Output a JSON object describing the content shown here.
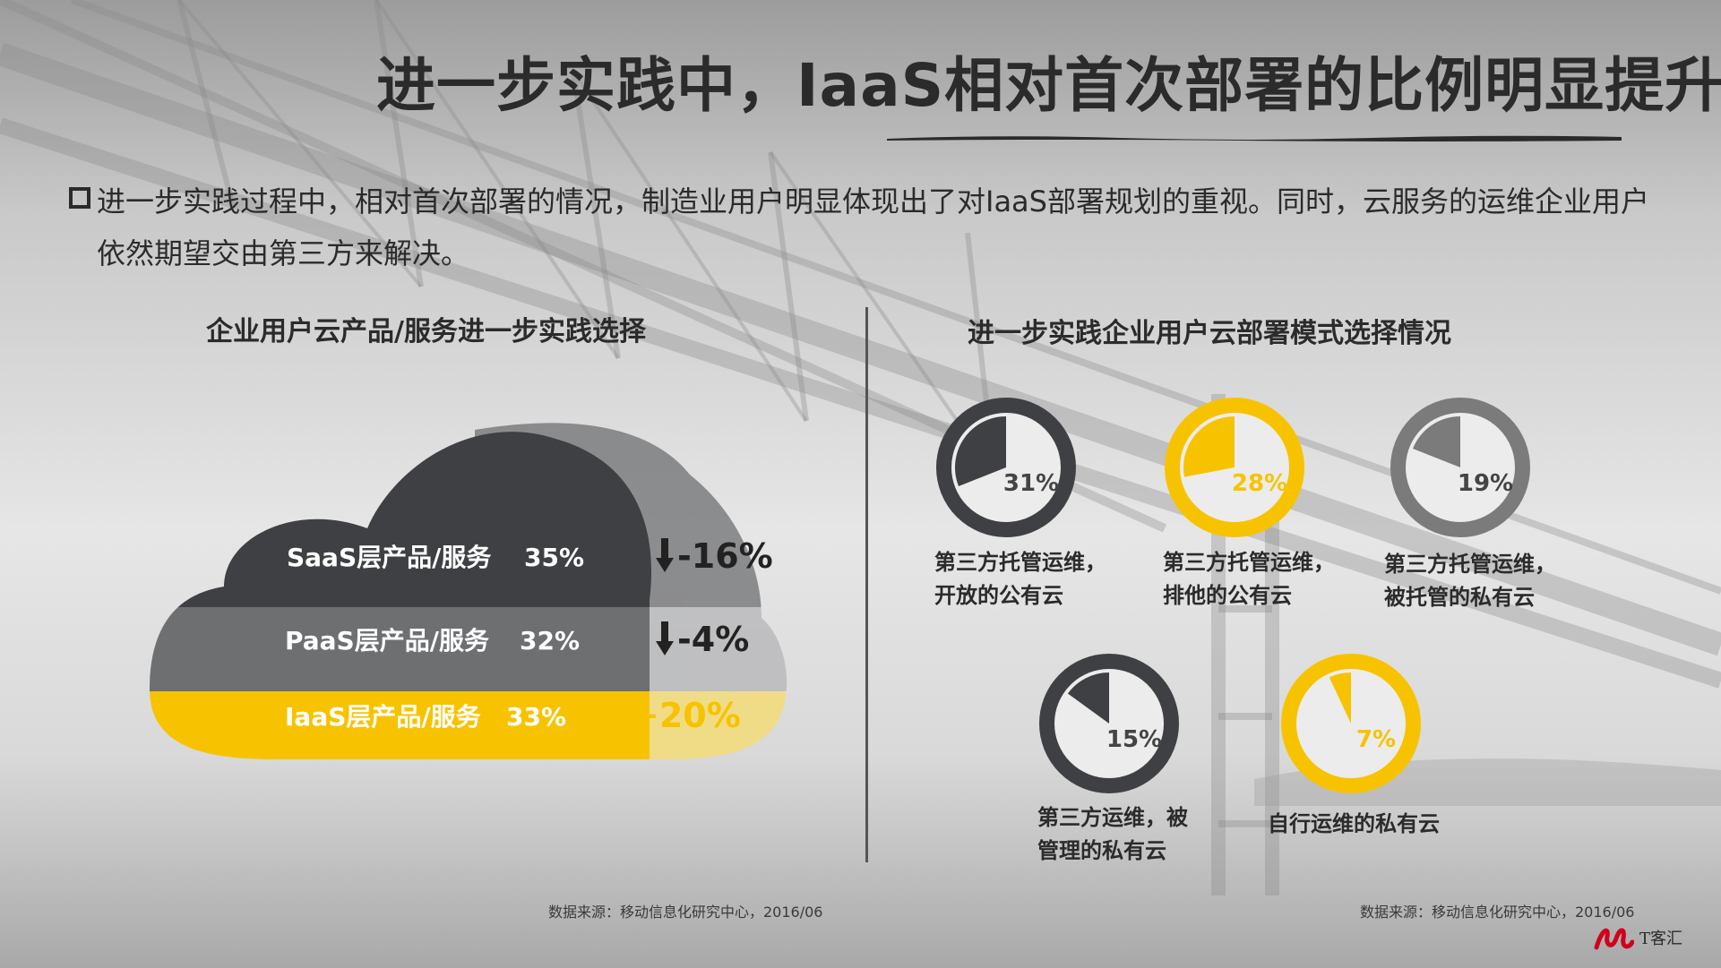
{
  "title": "进一步实践中，IaaS相对首次部署的比例明显提升",
  "intro": "进一步实践过程中，相对首次部署的情况，制造业用户明显体现出了对IaaS部署规划的重视。同时，云服务的运维企业用户依然期望交由第三方来解决。",
  "left_section": {
    "title": "企业用户云产品/服务进一步实践选择",
    "source": "数据来源：移动信息化研究中心，2016/06"
  },
  "right_section": {
    "title": "进一步实践企业用户云部署模式选择情况",
    "source": "数据来源：移动信息化研究中心，2016/06"
  },
  "logo_text": "T客汇",
  "colors": {
    "dark": "#3f4043",
    "mid": "#6e6f71",
    "yellow": "#f7c300",
    "gray_ring": "#7b7b7b"
  },
  "chart_data": [
    {
      "type": "bar",
      "categories": [
        "SaaS层产品/服务",
        "PaaS层产品/服务",
        "IaaS层产品/服务"
      ],
      "values": [
        35,
        32,
        33
      ],
      "value_labels": [
        "35%",
        "32%",
        "33%"
      ],
      "changes": [
        -16,
        -4,
        20
      ],
      "change_labels": [
        "-16%",
        "-4%",
        "+20%"
      ],
      "change_directions": [
        "down",
        "down",
        "up"
      ],
      "colors": [
        "#3f4043",
        "#6e6f71",
        "#f7c300"
      ]
    },
    {
      "type": "pie",
      "labels": [
        "第三方托管运维，开放的公有云",
        "第三方托管运维，排他的公有云",
        "第三方托管运维，被托管的私有云",
        "第三方运维，被管理的私有云",
        "自行运维的私有云"
      ],
      "values": [
        31,
        28,
        19,
        15,
        7
      ],
      "value_labels": [
        "31%",
        "28%",
        "19%",
        "15%",
        "7%"
      ],
      "colors": [
        "#3f4043",
        "#f7c300",
        "#7b7b7b",
        "#3f4043",
        "#f7c300"
      ]
    }
  ]
}
